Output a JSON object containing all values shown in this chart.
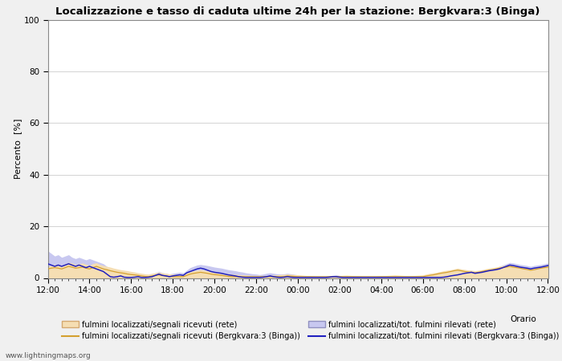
{
  "title": "Localizzazione e tasso di caduta ultime 24h per la stazione: Bergkvara:3 (Binga)",
  "xlabel": "Orario",
  "ylabel": "Percento  [%]",
  "ylim": [
    0,
    100
  ],
  "yticks": [
    0,
    20,
    40,
    60,
    80,
    100
  ],
  "background_color": "#f0f0f0",
  "plot_bg_color": "#ffffff",
  "grid_color": "#cccccc",
  "watermark": "www.lightningmaps.org",
  "legend": [
    {
      "label": "fulmini localizzati/segnali ricevuti (rete)",
      "type": "fill",
      "color": "#f5deb3",
      "edgecolor": "#d4a870"
    },
    {
      "label": "fulmini localizzati/segnali ricevuti (Bergkvara:3 (Binga))",
      "type": "line",
      "color": "#d4a030"
    },
    {
      "label": "fulmini localizzati/tot. fulmini rilevati (rete)",
      "type": "fill",
      "color": "#c8c8f0",
      "edgecolor": "#9090c0"
    },
    {
      "label": "fulmini localizzati/tot. fulmini rilevati (Bergkvara:3 (Binga))",
      "type": "line",
      "color": "#2020c0"
    }
  ],
  "time_labels": [
    "12:00",
    "14:00",
    "16:00",
    "18:00",
    "20:00",
    "22:00",
    "00:00",
    "02:00",
    "04:00",
    "06:00",
    "08:00",
    "10:00",
    "12:00"
  ],
  "fill_rete_top": [
    4.5,
    4.8,
    5.2,
    5.0,
    4.8,
    5.5,
    6.0,
    5.8,
    5.2,
    5.5,
    5.8,
    5.3,
    4.9,
    5.6,
    5.9,
    5.2,
    4.8,
    4.5,
    4.2,
    3.8,
    3.5,
    3.2,
    3.0,
    2.8,
    2.5,
    2.3,
    2.0,
    1.8,
    1.6,
    1.5,
    1.8,
    2.0,
    2.2,
    2.0,
    1.8,
    1.6,
    1.5,
    1.4,
    1.3,
    1.2,
    2.0,
    2.5,
    2.8,
    3.0,
    3.2,
    3.0,
    2.8,
    2.5,
    2.3,
    2.2,
    2.0,
    1.8,
    1.6,
    1.5,
    1.4,
    1.3,
    1.2,
    1.1,
    1.0,
    0.9,
    0.8,
    0.7,
    0.8,
    0.9,
    1.0,
    1.1,
    1.2,
    1.3,
    1.4,
    1.5,
    1.4,
    1.3,
    1.2,
    1.1,
    1.0,
    0.9,
    0.8,
    0.7,
    0.6,
    0.5,
    0.5,
    0.6,
    0.7,
    0.8,
    0.9,
    1.0,
    1.1,
    1.0,
    0.9,
    0.8,
    0.7,
    0.6,
    0.5,
    0.5,
    0.6,
    0.7,
    0.8,
    0.9,
    1.0,
    1.1,
    1.2,
    1.1,
    1.0,
    0.9,
    0.8,
    0.9,
    1.0,
    1.1,
    1.2,
    1.5,
    1.8,
    2.0,
    2.2,
    2.5,
    2.8,
    3.0,
    3.2,
    3.5,
    3.8,
    3.5,
    3.3,
    3.1,
    3.0,
    2.8,
    3.0,
    3.2,
    3.5,
    3.8,
    4.0,
    4.2,
    4.5,
    4.8,
    5.0,
    5.2,
    5.0,
    4.8,
    4.5,
    4.2,
    4.0,
    3.8,
    4.0,
    4.2,
    4.5,
    4.8,
    5.0
  ],
  "line_rete": [
    3.5,
    3.8,
    4.0,
    3.8,
    3.5,
    4.0,
    4.5,
    4.2,
    3.8,
    4.0,
    4.2,
    3.8,
    3.5,
    4.0,
    4.5,
    4.0,
    3.5,
    3.2,
    2.8,
    2.5,
    2.2,
    2.0,
    1.8,
    1.5,
    1.3,
    1.2,
    1.0,
    0.8,
    0.6,
    0.5,
    0.8,
    1.0,
    1.2,
    1.0,
    0.8,
    0.6,
    0.5,
    0.5,
    0.5,
    0.5,
    1.0,
    1.5,
    1.8,
    2.0,
    2.2,
    2.0,
    1.8,
    1.5,
    1.3,
    1.2,
    1.0,
    0.8,
    0.6,
    0.5,
    0.5,
    0.5,
    0.5,
    0.5,
    0.5,
    0.5,
    0.5,
    0.5,
    0.5,
    0.5,
    0.5,
    0.5,
    0.5,
    0.5,
    0.5,
    0.8,
    0.7,
    0.6,
    0.5,
    0.5,
    0.5,
    0.5,
    0.5,
    0.5,
    0.5,
    0.5,
    0.5,
    0.5,
    0.5,
    0.5,
    0.5,
    0.5,
    0.5,
    0.5,
    0.5,
    0.5,
    0.5,
    0.5,
    0.5,
    0.5,
    0.5,
    0.5,
    0.5,
    0.5,
    0.5,
    0.5,
    0.5,
    0.5,
    0.5,
    0.5,
    0.5,
    0.5,
    0.5,
    0.5,
    0.5,
    0.8,
    1.0,
    1.2,
    1.5,
    1.8,
    2.0,
    2.2,
    2.5,
    2.8,
    3.0,
    2.8,
    2.5,
    2.3,
    2.2,
    2.0,
    2.2,
    2.5,
    2.8,
    3.0,
    3.2,
    3.5,
    3.8,
    4.0,
    4.2,
    4.5,
    4.2,
    4.0,
    3.8,
    3.5,
    3.3,
    3.0,
    3.2,
    3.5,
    3.8,
    4.0,
    4.2
  ],
  "fill_binga_top": [
    10.5,
    9.5,
    8.5,
    9.0,
    8.0,
    8.5,
    9.0,
    8.0,
    7.5,
    8.0,
    7.5,
    7.0,
    7.5,
    7.0,
    6.5,
    6.0,
    5.5,
    4.5,
    2.0,
    1.5,
    1.8,
    2.0,
    1.5,
    1.2,
    1.0,
    1.2,
    1.5,
    1.0,
    0.8,
    1.0,
    1.5,
    2.0,
    2.5,
    2.0,
    1.8,
    1.5,
    1.8,
    2.0,
    2.2,
    2.0,
    3.0,
    4.0,
    4.5,
    5.0,
    5.2,
    5.0,
    4.8,
    4.5,
    4.2,
    4.0,
    3.8,
    3.5,
    3.2,
    3.0,
    2.8,
    2.5,
    2.3,
    2.0,
    1.8,
    1.6,
    1.5,
    1.3,
    1.5,
    1.8,
    2.0,
    1.8,
    1.6,
    1.5,
    1.6,
    1.8,
    1.6,
    1.4,
    1.2,
    1.0,
    0.9,
    0.8,
    0.7,
    0.6,
    0.5,
    0.5,
    0.6,
    0.8,
    1.0,
    1.2,
    1.0,
    0.8,
    0.7,
    0.6,
    0.5,
    0.5,
    0.5,
    0.5,
    0.5,
    0.5,
    0.5,
    0.5,
    0.5,
    0.5,
    0.5,
    0.5,
    0.5,
    0.5,
    0.5,
    0.5,
    0.5,
    0.5,
    0.5,
    0.5,
    0.5,
    0.5,
    0.5,
    0.5,
    0.5,
    0.5,
    0.8,
    1.0,
    1.2,
    1.5,
    1.8,
    2.0,
    2.2,
    2.5,
    2.8,
    2.5,
    2.8,
    3.0,
    3.2,
    3.5,
    3.8,
    4.0,
    4.5,
    5.0,
    5.5,
    6.0,
    5.8,
    5.5,
    5.2,
    5.0,
    4.8,
    4.5,
    4.8,
    5.0,
    5.2,
    5.5,
    5.8
  ],
  "line_binga": [
    5.5,
    5.0,
    4.5,
    5.0,
    4.5,
    5.0,
    5.5,
    5.0,
    4.5,
    5.0,
    4.5,
    4.0,
    4.5,
    4.0,
    3.5,
    3.0,
    2.5,
    1.5,
    0.5,
    0.3,
    0.5,
    0.8,
    0.3,
    0.2,
    0.2,
    0.3,
    0.5,
    0.2,
    0.2,
    0.3,
    0.5,
    1.0,
    1.5,
    1.0,
    0.8,
    0.5,
    0.8,
    1.0,
    1.2,
    1.0,
    2.0,
    2.5,
    3.0,
    3.5,
    3.8,
    3.5,
    3.0,
    2.5,
    2.2,
    2.0,
    1.8,
    1.5,
    1.2,
    1.0,
    0.8,
    0.5,
    0.3,
    0.2,
    0.2,
    0.2,
    0.2,
    0.2,
    0.3,
    0.5,
    0.8,
    0.5,
    0.3,
    0.2,
    0.3,
    0.5,
    0.3,
    0.2,
    0.2,
    0.2,
    0.2,
    0.2,
    0.2,
    0.2,
    0.2,
    0.2,
    0.2,
    0.3,
    0.5,
    0.5,
    0.3,
    0.2,
    0.2,
    0.2,
    0.2,
    0.2,
    0.2,
    0.2,
    0.2,
    0.2,
    0.2,
    0.2,
    0.2,
    0.2,
    0.2,
    0.2,
    0.2,
    0.2,
    0.2,
    0.2,
    0.2,
    0.2,
    0.2,
    0.2,
    0.2,
    0.2,
    0.2,
    0.2,
    0.2,
    0.2,
    0.3,
    0.5,
    0.8,
    1.0,
    1.2,
    1.5,
    1.8,
    2.0,
    2.2,
    1.8,
    2.0,
    2.2,
    2.5,
    2.8,
    3.0,
    3.2,
    3.5,
    4.0,
    4.5,
    5.0,
    4.8,
    4.5,
    4.2,
    4.0,
    3.8,
    3.5,
    3.8,
    4.0,
    4.2,
    4.5,
    4.8
  ]
}
